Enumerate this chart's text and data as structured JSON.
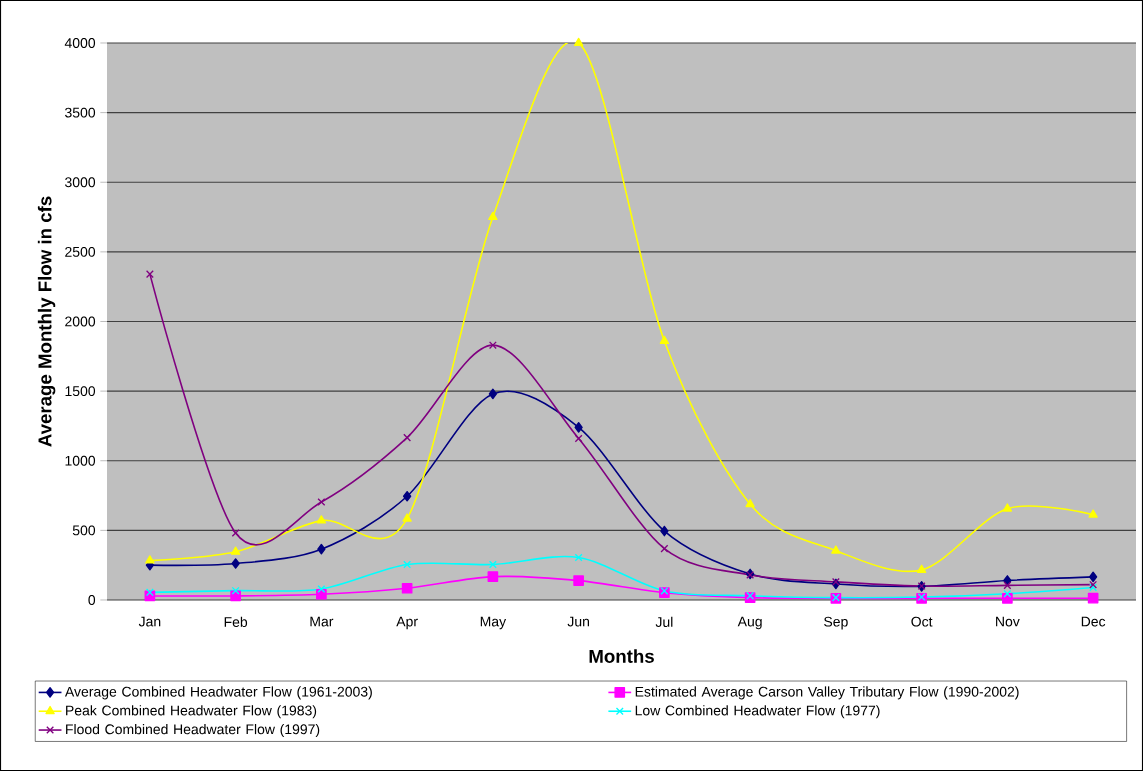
{
  "chart_data": {
    "type": "line",
    "xlabel": "Months",
    "ylabel": "Average Monthly Flow in cfs",
    "categories": [
      "Jan",
      "Feb",
      "Mar",
      "Apr",
      "May",
      "Jun",
      "Jul",
      "Aug",
      "Sep",
      "Oct",
      "Nov",
      "Dec"
    ],
    "ylim": [
      0,
      4000
    ],
    "yticks": [
      0,
      500,
      1000,
      1500,
      2000,
      2500,
      3000,
      3500,
      4000
    ],
    "grid": "y",
    "legend": "bottom",
    "series": [
      {
        "name": "Average Combined Headwater Flow (1961-2003)",
        "color": "#000080",
        "marker": "diamond",
        "values": [
          250,
          262,
          365,
          745,
          1480,
          1240,
          495,
          187,
          115,
          98,
          140,
          166
        ]
      },
      {
        "name": "Estimated Average Carson Valley Tributary Flow (1990-2002)",
        "color": "#ff00ff",
        "marker": "square",
        "values": [
          29,
          29,
          41,
          84,
          168,
          139,
          53,
          17,
          12,
          12,
          12,
          13
        ]
      },
      {
        "name": "Peak Combined Headwater Flow (1983)",
        "color": "#ffff00",
        "marker": "triangle",
        "values": [
          283,
          346,
          570,
          584,
          2750,
          4000,
          1860,
          688,
          354,
          216,
          656,
          613
        ]
      },
      {
        "name": "Low Combined Headwater Flow (1977)",
        "color": "#00ffff",
        "marker": "cross",
        "values": [
          55,
          67,
          79,
          255,
          255,
          305,
          65,
          30,
          17,
          21,
          45,
          90
        ]
      },
      {
        "name": "Flood Combined Headwater Flow (1997)",
        "color": "#800080",
        "marker": "cross",
        "values": [
          2340,
          481,
          704,
          1166,
          1830,
          1160,
          369,
          180,
          130,
          100,
          105,
          110
        ]
      }
    ]
  }
}
